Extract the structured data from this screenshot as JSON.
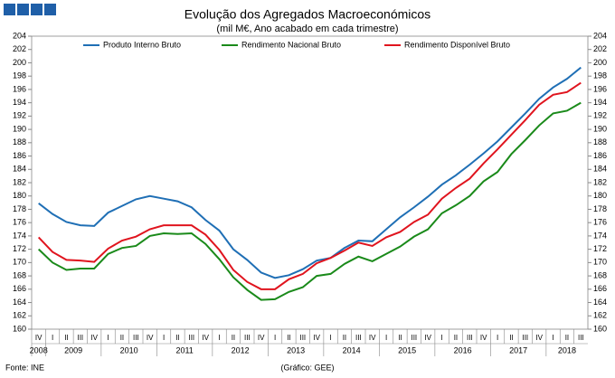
{
  "chart_data": {
    "type": "line",
    "title": "Evolução dos Agregados Macroeconómicos",
    "subtitle": "(mil M€, Ano acabado em cada trimestre)",
    "source": "Fonte: INE",
    "credit": "(Gráfico: GEE)",
    "categories": [
      "IV",
      "I",
      "II",
      "III",
      "IV",
      "I",
      "II",
      "III",
      "IV",
      "I",
      "II",
      "III",
      "IV",
      "I",
      "II",
      "III",
      "IV",
      "I",
      "II",
      "III",
      "IV",
      "I",
      "II",
      "III",
      "IV",
      "I",
      "II",
      "III",
      "IV",
      "I",
      "II",
      "III",
      "IV",
      "I",
      "II",
      "III",
      "IV",
      "I",
      "II",
      "III"
    ],
    "years": [
      "2008",
      "2009",
      "2010",
      "2011",
      "2012",
      "2013",
      "2014",
      "2015",
      "2016",
      "2017",
      "2018"
    ],
    "series": [
      {
        "name": "Produto Interno Bruto",
        "color": "#1f6fb5",
        "values": [
          178.9,
          177.3,
          176.1,
          175.6,
          175.5,
          177.5,
          178.5,
          179.5,
          180.0,
          179.6,
          179.2,
          178.3,
          176.4,
          174.8,
          172.0,
          170.4,
          168.5,
          167.7,
          168.1,
          169.0,
          170.3,
          170.7,
          172.2,
          173.3,
          173.2,
          175.0,
          176.8,
          178.3,
          179.9,
          181.7,
          183.1,
          184.7,
          186.4,
          188.2,
          190.3,
          192.4,
          194.6,
          196.3,
          197.6,
          199.3
        ]
      },
      {
        "name": "Rendimento Nacional Bruto",
        "color": "#1a8a1a",
        "values": [
          172.0,
          170.0,
          168.9,
          169.1,
          169.1,
          171.3,
          172.2,
          172.5,
          174.0,
          174.4,
          174.3,
          174.4,
          172.8,
          170.5,
          167.8,
          165.9,
          164.4,
          164.5,
          165.6,
          166.3,
          168.0,
          168.3,
          169.8,
          170.9,
          170.2,
          171.3,
          172.4,
          173.9,
          175.0,
          177.4,
          178.6,
          180.0,
          182.2,
          183.6,
          186.3,
          188.4,
          190.6,
          192.4,
          192.8,
          194.0
        ]
      },
      {
        "name": "Rendimento Disponível Bruto",
        "color": "#e0141e",
        "values": [
          173.8,
          171.6,
          170.4,
          170.3,
          170.1,
          172.1,
          173.3,
          173.9,
          175.0,
          175.6,
          175.6,
          175.6,
          174.2,
          171.9,
          168.9,
          167.1,
          166.0,
          166.0,
          167.5,
          168.3,
          169.9,
          170.7,
          171.8,
          173.0,
          172.5,
          173.8,
          174.6,
          176.1,
          177.2,
          179.6,
          181.2,
          182.6,
          184.9,
          187.0,
          189.2,
          191.4,
          193.7,
          195.2,
          195.6,
          197.0
        ]
      }
    ],
    "ylim": [
      160,
      204
    ],
    "yticks": [
      160,
      162,
      164,
      166,
      168,
      170,
      172,
      174,
      176,
      178,
      180,
      182,
      184,
      186,
      188,
      190,
      192,
      194,
      196,
      198,
      200,
      202,
      204
    ]
  }
}
